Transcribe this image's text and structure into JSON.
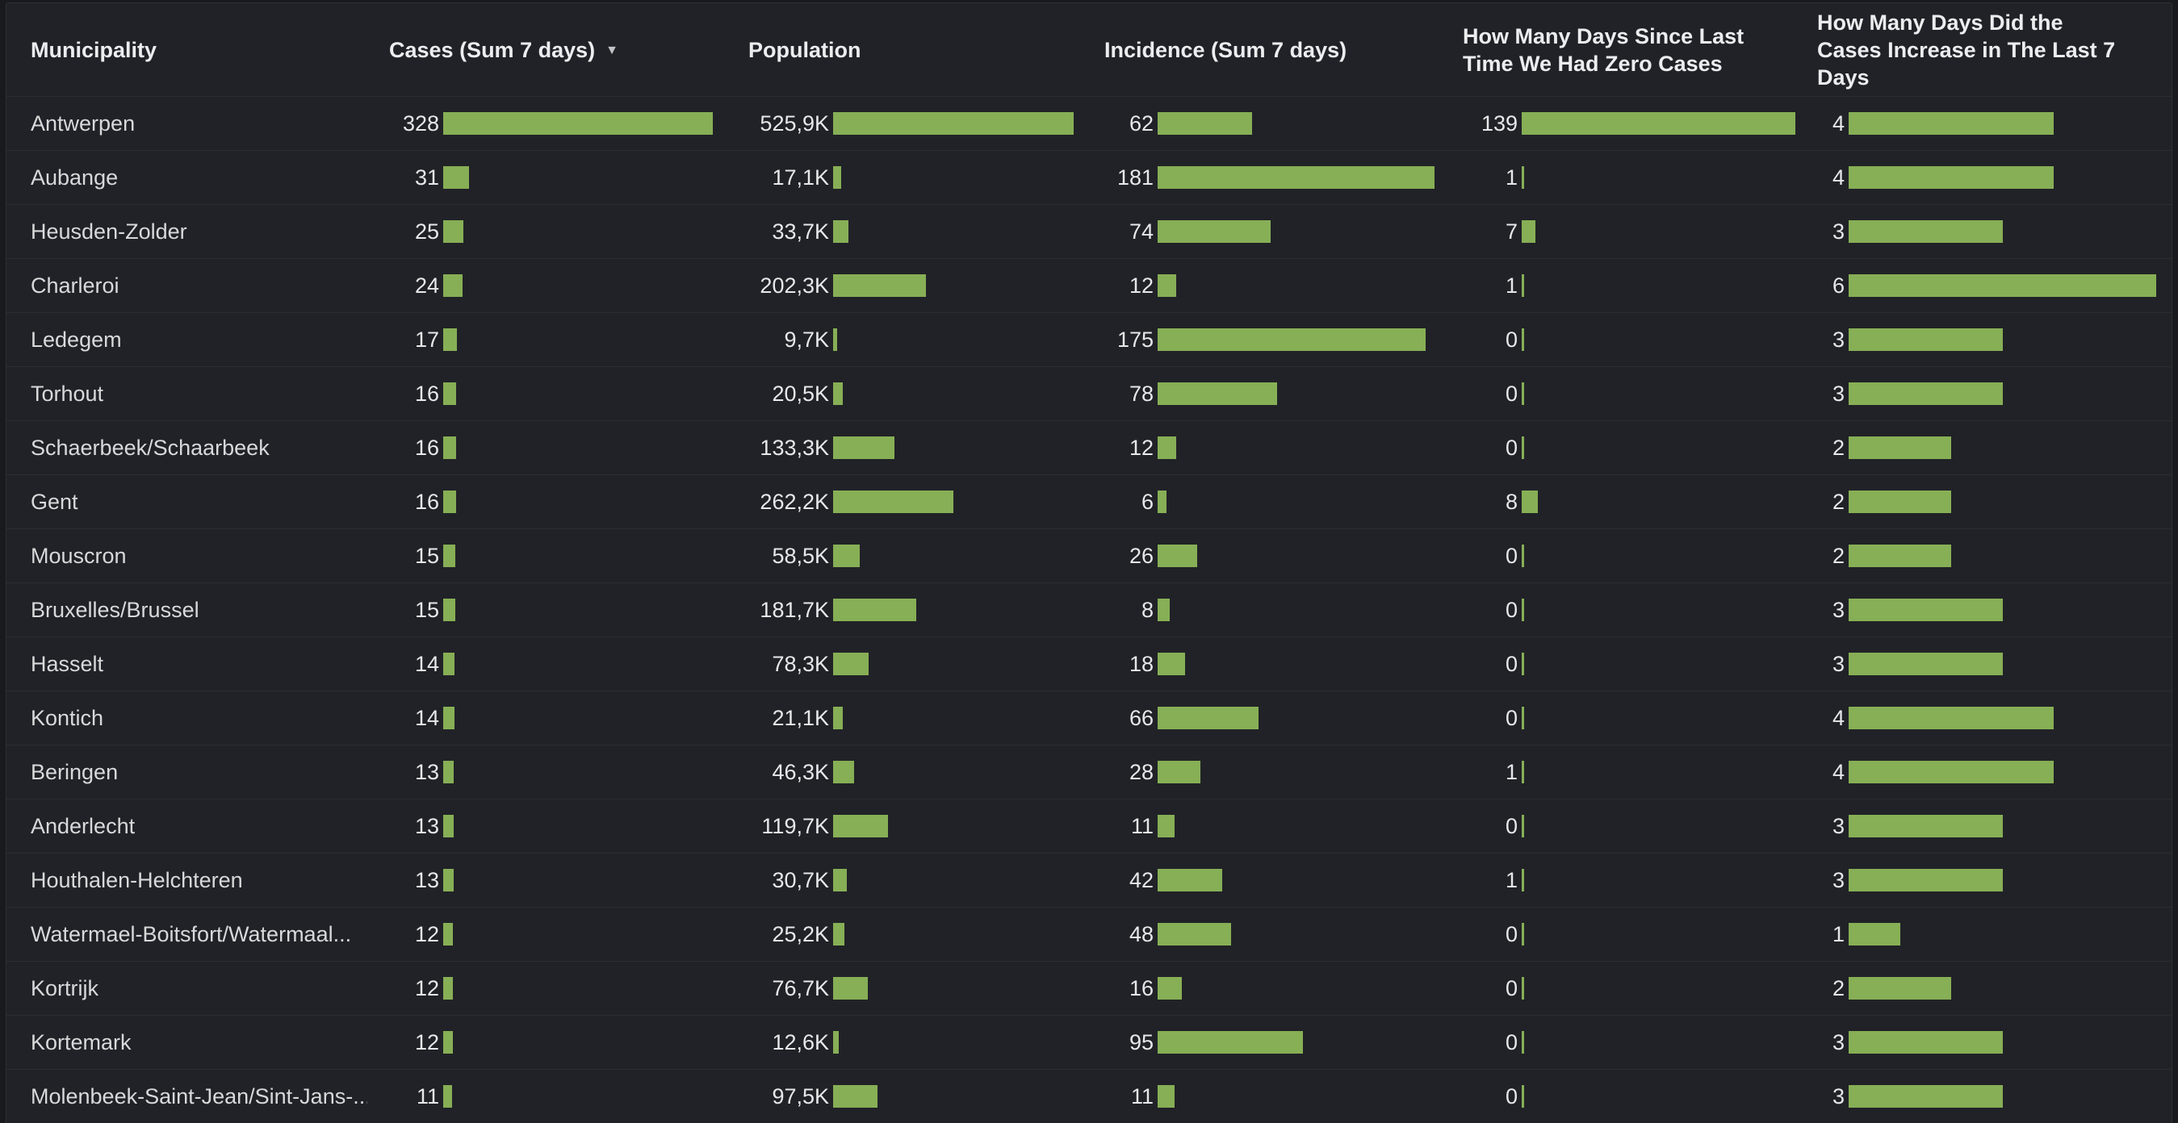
{
  "colors": {
    "bar_green": "#87af56",
    "panel_background": "#212227",
    "page_background": "#191a1e",
    "row_separator": "#2c2d32",
    "header_text": "#ecedef",
    "cell_text": "#d8d9da"
  },
  "table": {
    "sort_indicator": "▼",
    "columns": [
      {
        "key": "name",
        "label": "Municipality"
      },
      {
        "key": "cases",
        "label": "Cases (Sum 7 days)",
        "sorted": "desc",
        "max": 328
      },
      {
        "key": "population",
        "label": "Population",
        "max": 525.9
      },
      {
        "key": "incidence",
        "label": "Incidence (Sum 7 days)",
        "max": 181
      },
      {
        "key": "days_since_zero",
        "label": "How Many Days Since Last\nTime We Had Zero Cases",
        "max": 139
      },
      {
        "key": "days_increase",
        "label": "How Many Days Did the\nCases Increase in The Last 7\nDays",
        "max": 6
      }
    ],
    "rows": [
      {
        "name": "Antwerpen",
        "cases": 328,
        "population": "525,9K",
        "population_value": 525.9,
        "incidence": 62,
        "days_since_zero": 139,
        "days_increase": 4
      },
      {
        "name": "Aubange",
        "cases": 31,
        "population": "17,1K",
        "population_value": 17.1,
        "incidence": 181,
        "days_since_zero": 1,
        "days_increase": 4
      },
      {
        "name": "Heusden-Zolder",
        "cases": 25,
        "population": "33,7K",
        "population_value": 33.7,
        "incidence": 74,
        "days_since_zero": 7,
        "days_increase": 3
      },
      {
        "name": "Charleroi",
        "cases": 24,
        "population": "202,3K",
        "population_value": 202.3,
        "incidence": 12,
        "days_since_zero": 1,
        "days_increase": 6
      },
      {
        "name": "Ledegem",
        "cases": 17,
        "population": "9,7K",
        "population_value": 9.7,
        "incidence": 175,
        "days_since_zero": 0,
        "days_increase": 3
      },
      {
        "name": "Torhout",
        "cases": 16,
        "population": "20,5K",
        "population_value": 20.5,
        "incidence": 78,
        "days_since_zero": 0,
        "days_increase": 3
      },
      {
        "name": "Schaerbeek/Schaarbeek",
        "cases": 16,
        "population": "133,3K",
        "population_value": 133.3,
        "incidence": 12,
        "days_since_zero": 0,
        "days_increase": 2
      },
      {
        "name": "Gent",
        "cases": 16,
        "population": "262,2K",
        "population_value": 262.2,
        "incidence": 6,
        "days_since_zero": 8,
        "days_increase": 2
      },
      {
        "name": "Mouscron",
        "cases": 15,
        "population": "58,5K",
        "population_value": 58.5,
        "incidence": 26,
        "days_since_zero": 0,
        "days_increase": 2
      },
      {
        "name": "Bruxelles/Brussel",
        "cases": 15,
        "population": "181,7K",
        "population_value": 181.7,
        "incidence": 8,
        "days_since_zero": 0,
        "days_increase": 3
      },
      {
        "name": "Hasselt",
        "cases": 14,
        "population": "78,3K",
        "population_value": 78.3,
        "incidence": 18,
        "days_since_zero": 0,
        "days_increase": 3
      },
      {
        "name": "Kontich",
        "cases": 14,
        "population": "21,1K",
        "population_value": 21.1,
        "incidence": 66,
        "days_since_zero": 0,
        "days_increase": 4
      },
      {
        "name": "Beringen",
        "cases": 13,
        "population": "46,3K",
        "population_value": 46.3,
        "incidence": 28,
        "days_since_zero": 1,
        "days_increase": 4
      },
      {
        "name": "Anderlecht",
        "cases": 13,
        "population": "119,7K",
        "population_value": 119.7,
        "incidence": 11,
        "days_since_zero": 0,
        "days_increase": 3
      },
      {
        "name": "Houthalen-Helchteren",
        "cases": 13,
        "population": "30,7K",
        "population_value": 30.7,
        "incidence": 42,
        "days_since_zero": 1,
        "days_increase": 3
      },
      {
        "name": "Watermael-Boitsfort/Watermaal...",
        "cases": 12,
        "population": "25,2K",
        "population_value": 25.2,
        "incidence": 48,
        "days_since_zero": 0,
        "days_increase": 1
      },
      {
        "name": "Kortrijk",
        "cases": 12,
        "population": "76,7K",
        "population_value": 76.7,
        "incidence": 16,
        "days_since_zero": 0,
        "days_increase": 2
      },
      {
        "name": "Kortemark",
        "cases": 12,
        "population": "12,6K",
        "population_value": 12.6,
        "incidence": 95,
        "days_since_zero": 0,
        "days_increase": 3
      },
      {
        "name": "Molenbeek-Saint-Jean/Sint-Jans-...",
        "cases": 11,
        "population": "97,5K",
        "population_value": 97.5,
        "incidence": 11,
        "days_since_zero": 0,
        "days_increase": 3
      }
    ]
  }
}
